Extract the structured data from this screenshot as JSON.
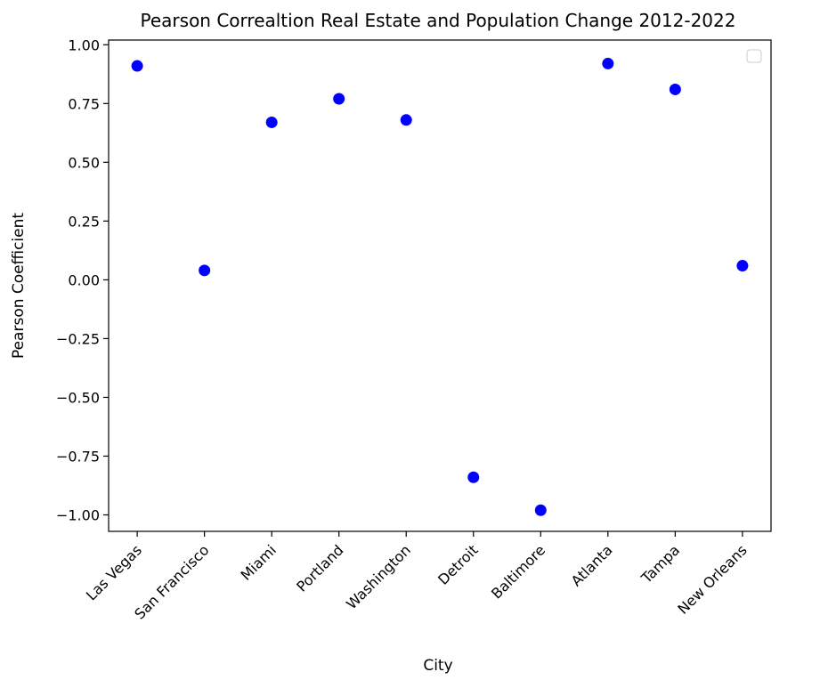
{
  "chart_data": {
    "type": "scatter",
    "title": "Pearson Correaltion Real Estate and Population Change 2012-2022",
    "xlabel": "City",
    "ylabel": "Pearson Coefficient",
    "categories": [
      "Las Vegas",
      "San Francisco",
      "Miami",
      "Portland",
      "Washington",
      "Detroit",
      "Baltimore",
      "Atlanta",
      "Tampa",
      "New Orleans"
    ],
    "values": [
      0.91,
      0.04,
      0.67,
      0.77,
      0.68,
      -0.84,
      -0.98,
      0.92,
      0.81,
      0.06
    ],
    "ylim": [
      -1.07,
      1.02
    ],
    "yticks": [
      -1.0,
      -0.75,
      -0.5,
      -0.25,
      0.0,
      0.25,
      0.5,
      0.75,
      1.0
    ],
    "ytick_labels": [
      "−1.00",
      "−0.75",
      "−0.50",
      "−0.25",
      "0.00",
      "0.25",
      "0.50",
      "0.75",
      "1.00"
    ],
    "grid": false,
    "legend": {
      "placement": "top-right",
      "entries": []
    },
    "marker_color": "#0000ff"
  }
}
